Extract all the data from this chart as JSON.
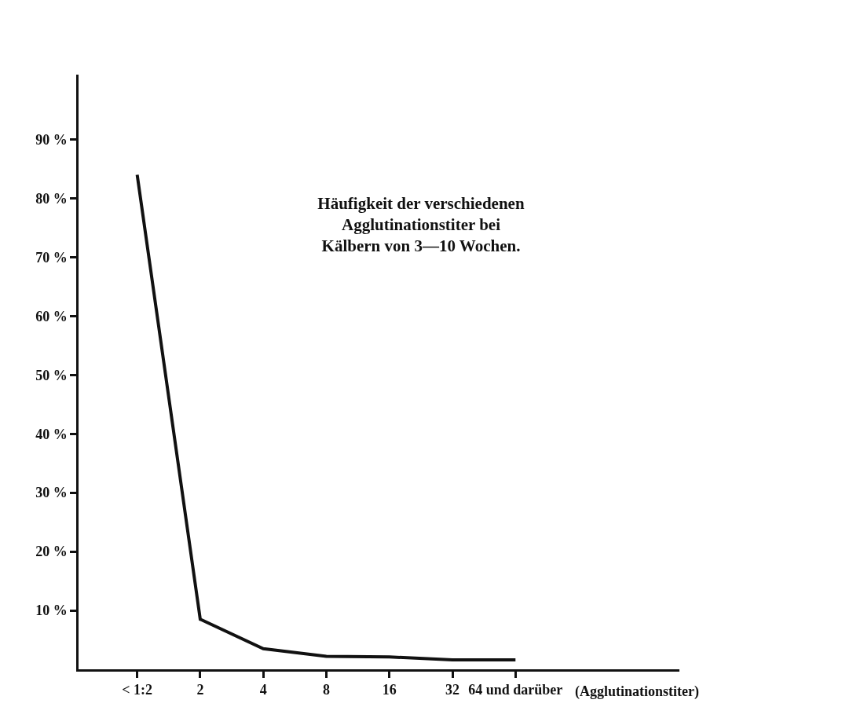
{
  "chart_data": {
    "type": "line",
    "title": "Häufigkeit der verschiedenen\nAgglutinationstiter bei\nKälbern von 3—10 Wochen.",
    "xlabel": "(Agglutinationstiter)",
    "categories": [
      "< 1:2",
      "2",
      "4",
      "8",
      "16",
      "32",
      "64 und darüber"
    ],
    "series": [
      {
        "color": "#111111",
        "values": [
          84,
          8.5,
          3.5,
          2.2,
          2.1,
          1.6,
          1.6
        ]
      }
    ],
    "ylim": [
      0,
      101
    ],
    "yticks": [
      {
        "value": 10,
        "label": "10 %"
      },
      {
        "value": 20,
        "label": "20 %"
      },
      {
        "value": 30,
        "label": "30 %"
      },
      {
        "value": 40,
        "label": "40 %"
      },
      {
        "value": 50,
        "label": "50 %"
      },
      {
        "value": 60,
        "label": "60 %"
      },
      {
        "value": 70,
        "label": "70 %"
      },
      {
        "value": 80,
        "label": "80 %"
      },
      {
        "value": 90,
        "label": "90 %"
      }
    ],
    "grid": false,
    "marker": "none",
    "line_style": "solid"
  }
}
